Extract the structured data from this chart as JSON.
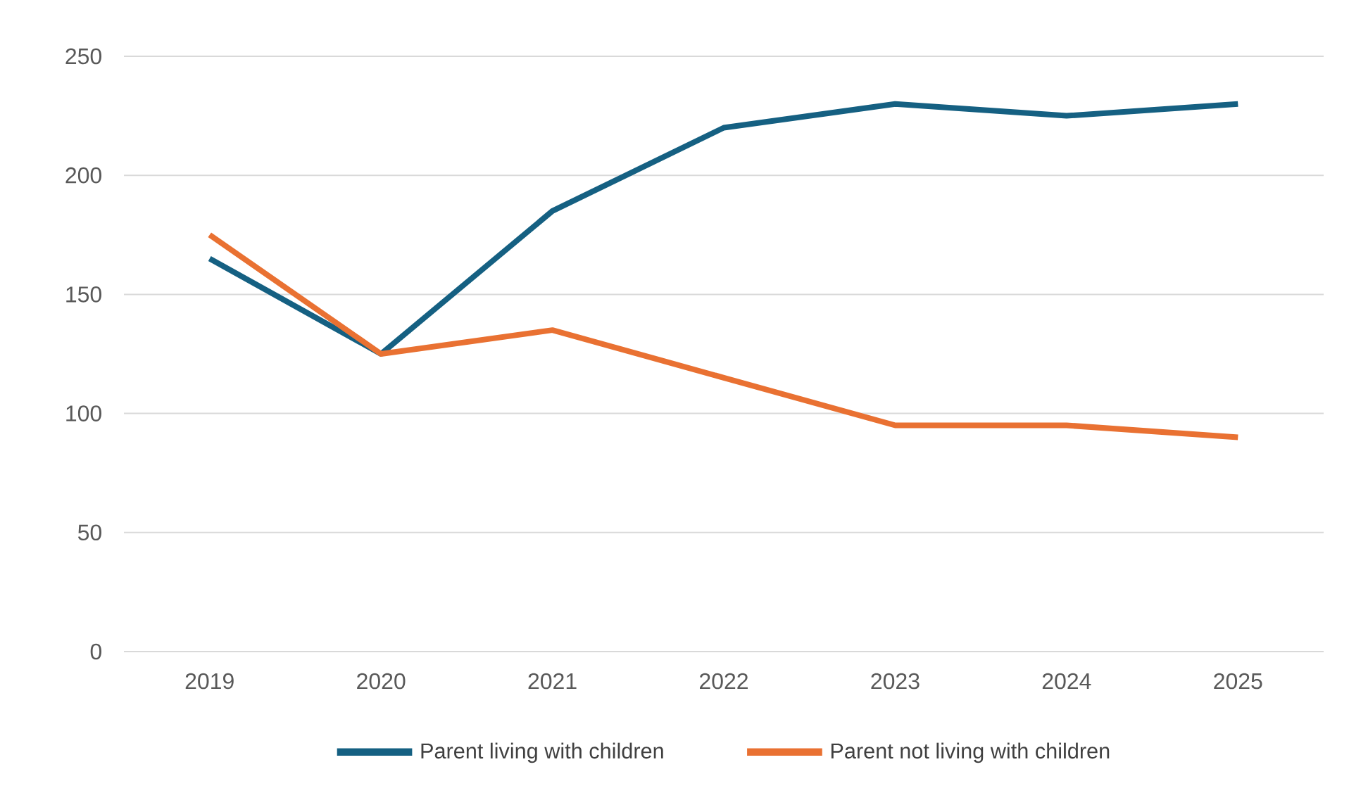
{
  "chart_data": {
    "type": "line",
    "categories": [
      "2019",
      "2020",
      "2021",
      "2022",
      "2023",
      "2024",
      "2025"
    ],
    "series": [
      {
        "name": "Parent living with children",
        "color": "#156082",
        "values": [
          165,
          125,
          185,
          220,
          230,
          225,
          230
        ]
      },
      {
        "name": "Parent not living with children",
        "color": "#e97132",
        "values": [
          175,
          125,
          135,
          115,
          95,
          95,
          90
        ]
      }
    ],
    "ylim": [
      0,
      250
    ],
    "yticks": [
      0,
      50,
      100,
      150,
      200,
      250
    ],
    "grid": "y",
    "legend": "bottom",
    "marker": "none",
    "line_style": "solid"
  }
}
